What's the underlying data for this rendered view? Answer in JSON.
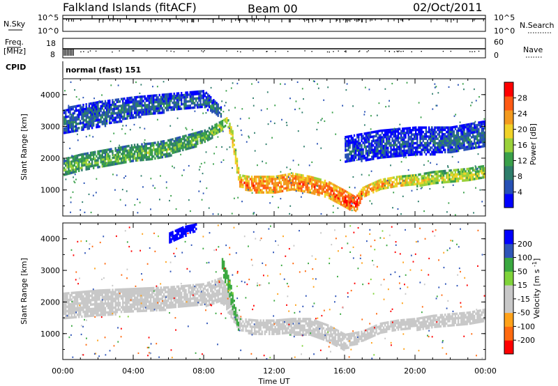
{
  "header": {
    "station": "Falkland Islands (fitACF)",
    "beam": "Beam 00",
    "date": "02/Oct/2011"
  },
  "top_panels": {
    "nsky_label": "N.Sky",
    "nsky_ticks": [
      "10^5",
      "10^0"
    ],
    "nsearch_label": "N.Search",
    "nsearch_ticks": [
      "10^5",
      "10^0"
    ],
    "freq_label_1": "Freq.",
    "freq_label_2": "[MHz]",
    "freq_ticks": [
      "18",
      "8"
    ],
    "nave_label": "Nave",
    "nave_ticks": [
      "60",
      "0"
    ],
    "cpid_label": "CPID",
    "cpid_text": "normal (fast) 151"
  },
  "colors": {
    "power": [
      "#0000ff",
      "#2650b4",
      "#2e7d6b",
      "#3aa04a",
      "#9ad13a",
      "#f0d228",
      "#f39a1e",
      "#ff5a14",
      "#ff0000"
    ],
    "velocity": [
      "#ff0000",
      "#ff6a10",
      "#ffa21a",
      "#c8c8c8",
      "#c8c8c8",
      "#7fd33a",
      "#3aa840",
      "#2f55b8",
      "#0000ff"
    ],
    "velocity_mid": "#c8c8c8"
  },
  "chart_data": [
    {
      "type": "heatmap",
      "ylabel": "Slant Range [km]",
      "xlabel": "Time UT",
      "x_ticks": [
        "00:00",
        "04:00",
        "08:00",
        "12:00",
        "16:00",
        "20:00",
        "00:00"
      ],
      "xlim_hours": [
        0,
        24
      ],
      "y_ticks": [
        "1000",
        "2000",
        "3000",
        "4000"
      ],
      "ylim": [
        180,
        4500
      ],
      "colorbar_label": "Power [dB]",
      "colorbar_ticks": [
        "28",
        "24",
        "20",
        "16",
        "12",
        "8",
        "4"
      ],
      "colorbar_range": [
        0,
        32
      ],
      "features": [
        {
          "name": "main-band",
          "t": [
            0,
            1,
            2,
            3,
            4,
            5,
            6,
            7,
            8,
            9,
            9.3,
            9.6,
            10,
            10.5,
            11,
            12,
            13,
            14,
            15,
            16,
            16.6,
            17,
            18,
            19,
            20,
            21,
            22,
            23,
            24
          ],
          "range_low": [
            1500,
            1600,
            1700,
            1800,
            1900,
            2000,
            2100,
            2300,
            2500,
            2900,
            3100,
            2400,
            1100,
            1000,
            950,
            950,
            1000,
            950,
            800,
            450,
            350,
            800,
            1050,
            1100,
            1150,
            1200,
            1250,
            1300,
            1400
          ],
          "range_high": [
            2000,
            2150,
            2250,
            2350,
            2450,
            2500,
            2600,
            2750,
            2900,
            3200,
            3300,
            2900,
            1500,
            1450,
            1450,
            1450,
            1550,
            1450,
            1300,
            1000,
            800,
            1100,
            1350,
            1450,
            1500,
            1600,
            1650,
            1700,
            1800
          ],
          "power": [
            14,
            14,
            14,
            14,
            14,
            14,
            14,
            14,
            14,
            18,
            20,
            22,
            24,
            26,
            26,
            26,
            26,
            26,
            26,
            28,
            30,
            26,
            24,
            22,
            20,
            18,
            18,
            18,
            18
          ]
        },
        {
          "name": "upper-band",
          "t": [
            0,
            2,
            4,
            6,
            8,
            9
          ],
          "range_low": [
            2800,
            3000,
            3300,
            3500,
            3600,
            3300
          ],
          "range_high": [
            3600,
            3800,
            3950,
            4050,
            4150,
            3600
          ],
          "power": [
            8,
            8,
            8,
            8,
            8,
            10
          ]
        },
        {
          "name": "late-upper",
          "t": [
            16,
            18,
            20,
            22,
            24
          ],
          "range_low": [
            1900,
            2000,
            2100,
            2200,
            2400
          ],
          "range_high": [
            2700,
            2900,
            3000,
            3000,
            3200
          ],
          "power": [
            6,
            6,
            6,
            8,
            8
          ]
        }
      ]
    },
    {
      "type": "heatmap",
      "ylabel": "Slant Range [km]",
      "xlabel": "Time UT",
      "x_ticks": [
        "00:00",
        "04:00",
        "08:00",
        "12:00",
        "16:00",
        "20:00",
        "00:00"
      ],
      "xlim_hours": [
        0,
        24
      ],
      "y_ticks": [
        "1000",
        "2000",
        "3000",
        "4000"
      ],
      "ylim": [
        180,
        4500
      ],
      "colorbar_label": "Velocity [m s^-1]",
      "colorbar_ticks": [
        "200",
        "100",
        "50",
        "15",
        "-15",
        "-50",
        "-100",
        "-200"
      ],
      "colorbar_range": [
        -250,
        250
      ],
      "features": [
        {
          "name": "ground-scatter-band",
          "t": [
            0,
            2,
            4,
            6,
            8,
            9,
            10,
            11,
            12,
            13,
            14,
            15,
            16,
            17,
            18,
            19,
            20,
            21,
            22,
            23,
            24
          ],
          "range_low": [
            1500,
            1600,
            1700,
            1800,
            1900,
            2000,
            1100,
            1000,
            1000,
            1000,
            950,
            800,
            500,
            800,
            1000,
            1100,
            1150,
            1200,
            1250,
            1300,
            1400
          ],
          "range_high": [
            2300,
            2400,
            2450,
            2500,
            2600,
            2800,
            1500,
            1450,
            1450,
            1500,
            1500,
            1300,
            1000,
            1100,
            1350,
            1450,
            1500,
            1600,
            1650,
            1700,
            1800
          ],
          "velocity": 0
        },
        {
          "name": "green-streak",
          "t": [
            9.0,
            9.5,
            10.0
          ],
          "range_low": [
            3000,
            2000,
            1000
          ],
          "range_high": [
            3500,
            2600,
            1200
          ],
          "velocity": 40
        },
        {
          "name": "blue-patch",
          "t": [
            6.0,
            6.8,
            7.6
          ],
          "range_low": [
            3900,
            4100,
            4300
          ],
          "range_high": [
            4200,
            4400,
            4500
          ],
          "velocity": 210
        }
      ]
    }
  ]
}
